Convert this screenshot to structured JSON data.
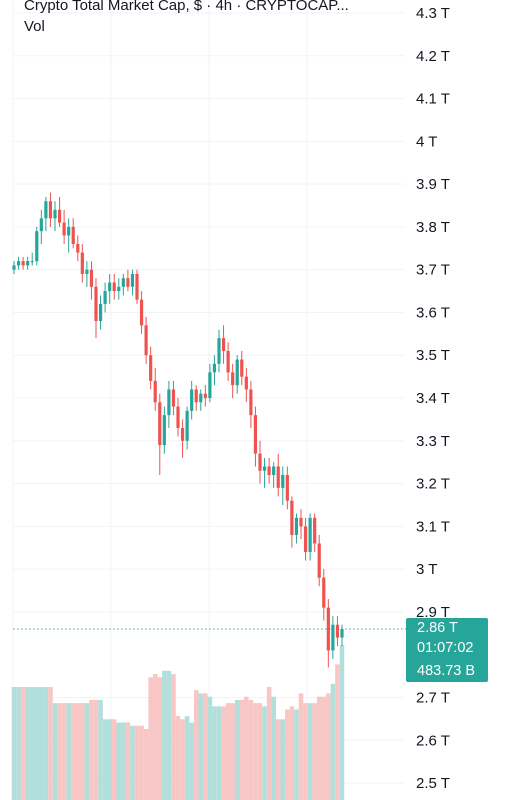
{
  "header": {
    "title": "Crypto Total Market Cap, $ · 4h · CRYPTOCAP...",
    "volume_label": "Vol"
  },
  "colors": {
    "up": "#26a69a",
    "down": "#ef5350",
    "up_volume": "#b2dfdb",
    "down_volume": "#f7c6c5",
    "grid": "#f0f3fa",
    "last_price_line": "#26a69a"
  },
  "price_tag": {
    "price": "2.86 T",
    "countdown": "01:07:02",
    "volume": "483.73 B"
  },
  "chart_data": {
    "type": "candlestick",
    "y_axis": {
      "unit": "T",
      "range": [
        2.47,
        4.32
      ],
      "ticks": [
        {
          "value": 4.3,
          "label": "4.3 T"
        },
        {
          "value": 4.2,
          "label": "4.2 T"
        },
        {
          "value": 4.1,
          "label": "4.1 T"
        },
        {
          "value": 4.0,
          "label": "4 T"
        },
        {
          "value": 3.9,
          "label": "3.9 T"
        },
        {
          "value": 3.8,
          "label": "3.8 T"
        },
        {
          "value": 3.7,
          "label": "3.7 T"
        },
        {
          "value": 3.6,
          "label": "3.6 T"
        },
        {
          "value": 3.5,
          "label": "3.5 T"
        },
        {
          "value": 3.4,
          "label": "3.4 T"
        },
        {
          "value": 3.3,
          "label": "3.3 T"
        },
        {
          "value": 3.2,
          "label": "3.2 T"
        },
        {
          "value": 3.1,
          "label": "3.1 T"
        },
        {
          "value": 3.0,
          "label": "3 T"
        },
        {
          "value": 2.9,
          "label": "2.9 T"
        },
        {
          "value": 2.7,
          "label": "2.7 T"
        },
        {
          "value": 2.6,
          "label": "2.6 T"
        },
        {
          "value": 2.5,
          "label": "2.5 T"
        }
      ]
    },
    "grid": true,
    "last_price": 2.86,
    "candles": [
      [
        3.7,
        3.72,
        3.69,
        3.71
      ],
      [
        3.71,
        3.73,
        3.7,
        3.72
      ],
      [
        3.72,
        3.73,
        3.7,
        3.71
      ],
      [
        3.71,
        3.73,
        3.7,
        3.72
      ],
      [
        3.72,
        3.74,
        3.71,
        3.72
      ],
      [
        3.72,
        3.8,
        3.71,
        3.79
      ],
      [
        3.79,
        3.84,
        3.76,
        3.82
      ],
      [
        3.82,
        3.87,
        3.79,
        3.86
      ],
      [
        3.86,
        3.88,
        3.8,
        3.82
      ],
      [
        3.82,
        3.86,
        3.79,
        3.84
      ],
      [
        3.84,
        3.87,
        3.8,
        3.81
      ],
      [
        3.81,
        3.84,
        3.76,
        3.78
      ],
      [
        3.78,
        3.82,
        3.74,
        3.8
      ],
      [
        3.8,
        3.82,
        3.75,
        3.76
      ],
      [
        3.76,
        3.78,
        3.72,
        3.74
      ],
      [
        3.74,
        3.76,
        3.67,
        3.69
      ],
      [
        3.69,
        3.72,
        3.66,
        3.7
      ],
      [
        3.7,
        3.72,
        3.63,
        3.66
      ],
      [
        3.66,
        3.68,
        3.54,
        3.58
      ],
      [
        3.58,
        3.64,
        3.56,
        3.62
      ],
      [
        3.62,
        3.67,
        3.6,
        3.65
      ],
      [
        3.65,
        3.69,
        3.62,
        3.67
      ],
      [
        3.67,
        3.69,
        3.63,
        3.65
      ],
      [
        3.65,
        3.68,
        3.63,
        3.66
      ],
      [
        3.66,
        3.69,
        3.64,
        3.68
      ],
      [
        3.68,
        3.7,
        3.65,
        3.66
      ],
      [
        3.66,
        3.7,
        3.64,
        3.69
      ],
      [
        3.69,
        3.7,
        3.62,
        3.63
      ],
      [
        3.63,
        3.65,
        3.55,
        3.57
      ],
      [
        3.57,
        3.59,
        3.48,
        3.5
      ],
      [
        3.5,
        3.52,
        3.42,
        3.44
      ],
      [
        3.44,
        3.47,
        3.37,
        3.39
      ],
      [
        3.39,
        3.41,
        3.22,
        3.29
      ],
      [
        3.29,
        3.38,
        3.27,
        3.36
      ],
      [
        3.36,
        3.44,
        3.33,
        3.42
      ],
      [
        3.42,
        3.44,
        3.36,
        3.38
      ],
      [
        3.38,
        3.4,
        3.31,
        3.33
      ],
      [
        3.33,
        3.35,
        3.26,
        3.3
      ],
      [
        3.3,
        3.38,
        3.28,
        3.37
      ],
      [
        3.37,
        3.44,
        3.35,
        3.42
      ],
      [
        3.42,
        3.43,
        3.37,
        3.39
      ],
      [
        3.39,
        3.42,
        3.37,
        3.41
      ],
      [
        3.41,
        3.43,
        3.38,
        3.4
      ],
      [
        3.4,
        3.48,
        3.39,
        3.46
      ],
      [
        3.46,
        3.5,
        3.43,
        3.48
      ],
      [
        3.48,
        3.56,
        3.46,
        3.54
      ],
      [
        3.54,
        3.57,
        3.48,
        3.51
      ],
      [
        3.51,
        3.53,
        3.44,
        3.46
      ],
      [
        3.46,
        3.48,
        3.4,
        3.43
      ],
      [
        3.43,
        3.5,
        3.41,
        3.49
      ],
      [
        3.49,
        3.51,
        3.43,
        3.45
      ],
      [
        3.45,
        3.47,
        3.39,
        3.42
      ],
      [
        3.42,
        3.44,
        3.33,
        3.36
      ],
      [
        3.36,
        3.38,
        3.24,
        3.27
      ],
      [
        3.27,
        3.3,
        3.2,
        3.23
      ],
      [
        3.23,
        3.26,
        3.19,
        3.24
      ],
      [
        3.24,
        3.26,
        3.2,
        3.22
      ],
      [
        3.22,
        3.25,
        3.19,
        3.24
      ],
      [
        3.24,
        3.27,
        3.17,
        3.19
      ],
      [
        3.19,
        3.24,
        3.15,
        3.22
      ],
      [
        3.22,
        3.24,
        3.14,
        3.16
      ],
      [
        3.16,
        3.17,
        3.05,
        3.08
      ],
      [
        3.08,
        3.13,
        3.06,
        3.12
      ],
      [
        3.12,
        3.14,
        3.07,
        3.1
      ],
      [
        3.1,
        3.12,
        3.02,
        3.04
      ],
      [
        3.04,
        3.13,
        3.02,
        3.12
      ],
      [
        3.12,
        3.13,
        3.04,
        3.06
      ],
      [
        3.06,
        3.08,
        2.96,
        2.98
      ],
      [
        2.98,
        3.0,
        2.88,
        2.91
      ],
      [
        2.91,
        2.93,
        2.77,
        2.81
      ],
      [
        2.81,
        2.89,
        2.79,
        2.87
      ],
      [
        2.87,
        2.89,
        2.82,
        2.84
      ],
      [
        2.84,
        2.87,
        2.82,
        2.86
      ]
    ],
    "volumes": [
      350,
      350,
      350,
      350,
      350,
      350,
      350,
      350,
      350,
      300,
      300,
      300,
      300,
      300,
      300,
      300,
      300,
      310,
      310,
      310,
      250,
      250,
      250,
      240,
      240,
      240,
      230,
      230,
      230,
      220,
      380,
      390,
      380,
      400,
      400,
      390,
      260,
      250,
      260,
      240,
      340,
      330,
      330,
      320,
      290,
      290,
      290,
      300,
      300,
      310,
      310,
      320,
      310,
      300,
      300,
      290,
      350,
      320,
      250,
      250,
      280,
      290,
      280,
      330,
      300,
      300,
      300,
      320,
      320,
      330,
      360,
      420,
      480
    ]
  }
}
